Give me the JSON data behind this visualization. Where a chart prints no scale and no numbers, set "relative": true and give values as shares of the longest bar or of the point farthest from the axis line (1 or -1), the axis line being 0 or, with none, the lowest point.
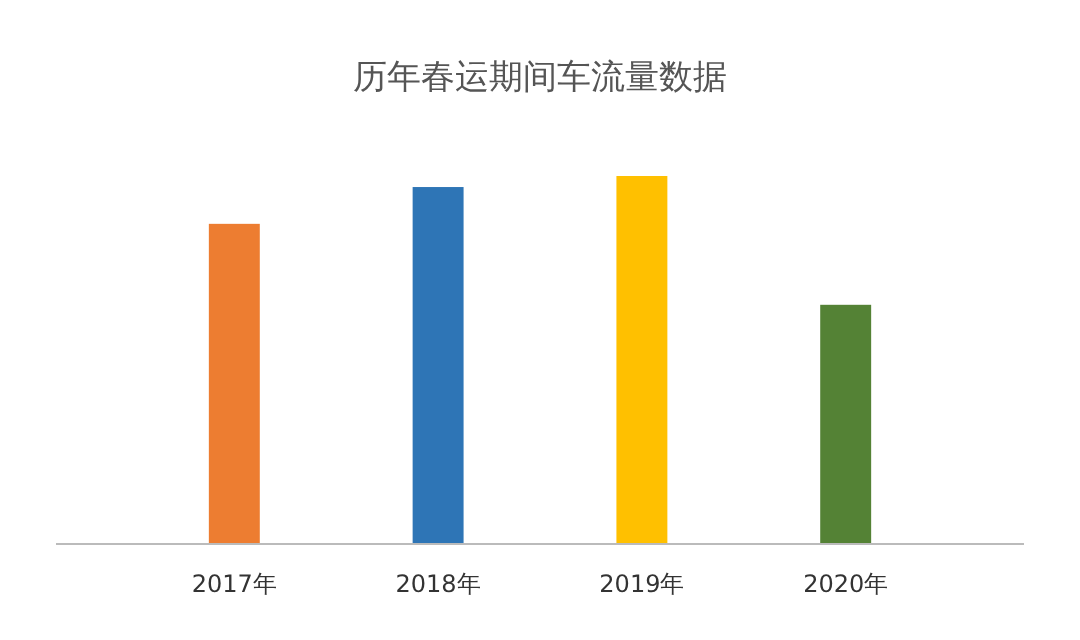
{
  "chart_data": {
    "type": "bar",
    "title": "历年春运期间车流量数据",
    "categories": [
      "2017年",
      "2018年",
      "2019年",
      "2020年"
    ],
    "relative": true,
    "values": [
      0.87,
      0.97,
      1,
      0.65
    ],
    "colors": [
      "#ed7d31",
      "#2e75b6",
      "#ffc000",
      "#548235"
    ]
  }
}
